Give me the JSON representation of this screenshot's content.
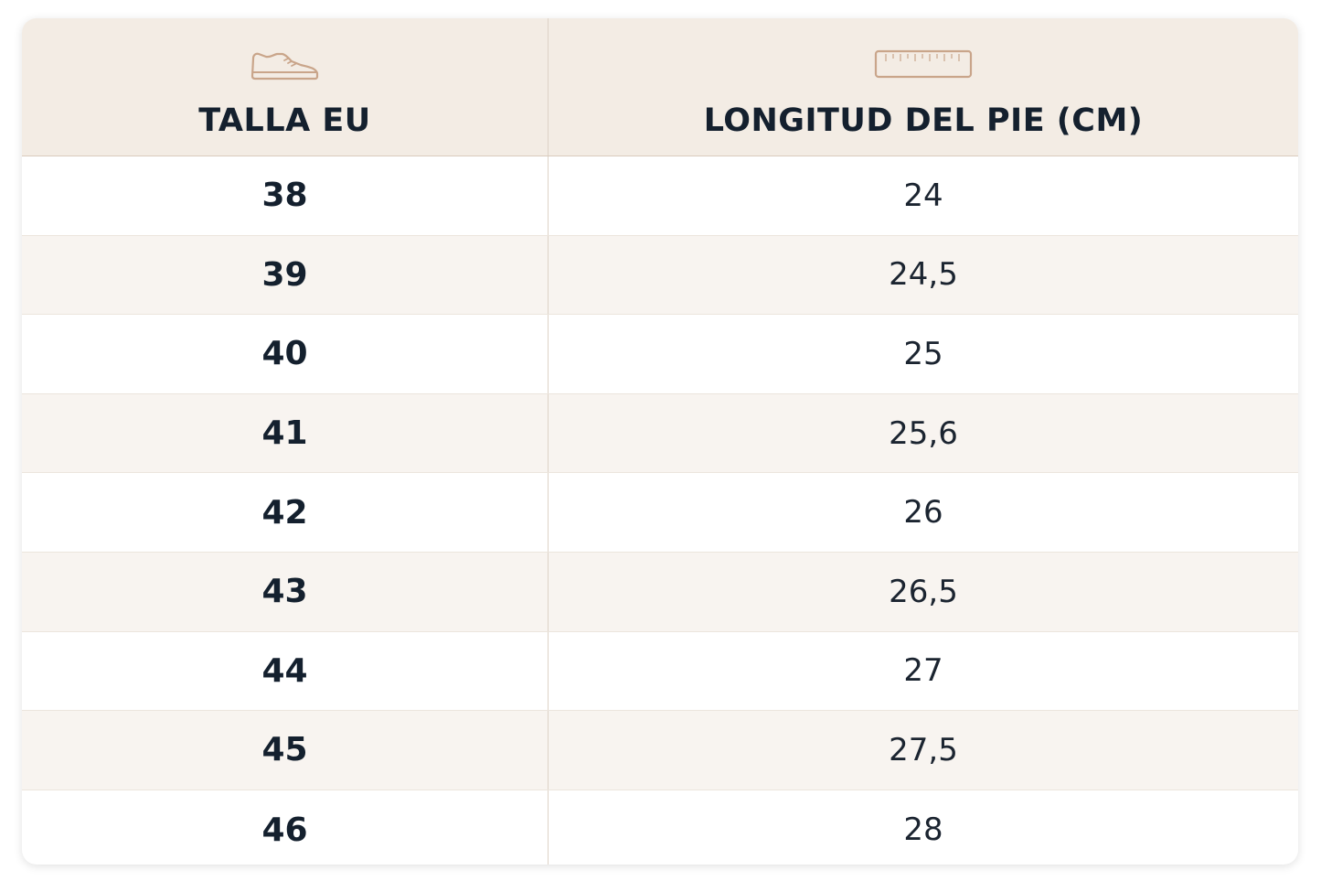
{
  "table": {
    "columns": [
      {
        "label": "TALLA EU",
        "icon": "sneaker-icon"
      },
      {
        "label": "LONGITUD DEL PIE (CM)",
        "icon": "ruler-icon"
      }
    ],
    "rows": [
      {
        "size": "38",
        "length": "24"
      },
      {
        "size": "39",
        "length": "24,5"
      },
      {
        "size": "40",
        "length": "25"
      },
      {
        "size": "41",
        "length": "25,6"
      },
      {
        "size": "42",
        "length": "26"
      },
      {
        "size": "43",
        "length": "26,5"
      },
      {
        "size": "44",
        "length": "27"
      },
      {
        "size": "45",
        "length": "27,5"
      },
      {
        "size": "46",
        "length": "28"
      }
    ]
  },
  "colors": {
    "header_bg": "#f3ece4",
    "alt_row_bg": "#f8f4f0",
    "icon_stroke": "#c9a58a",
    "text": "#14202e"
  }
}
